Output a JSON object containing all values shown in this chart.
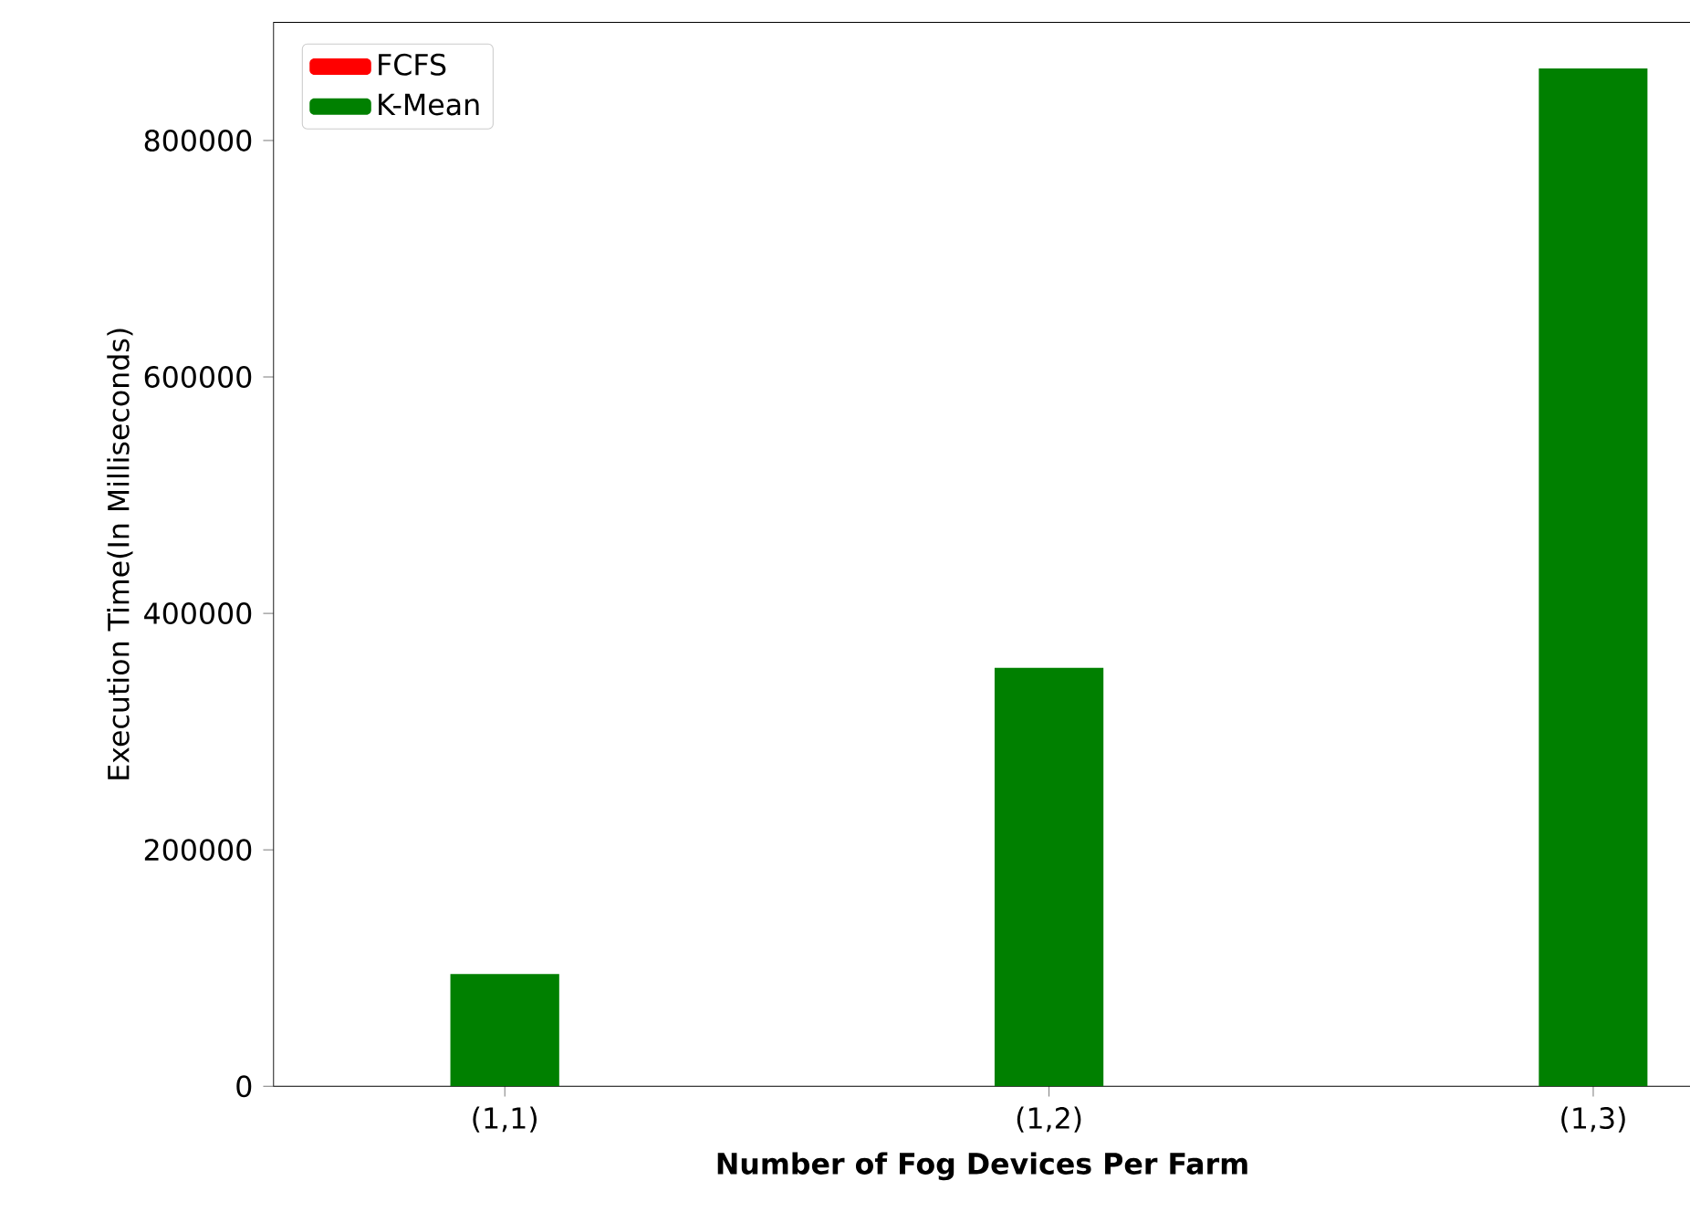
{
  "chart_data": {
    "type": "bar",
    "xlabel": "Number of Fog Devices Per Farm",
    "ylabel": "Execution Time(In Milliseconds)",
    "categories": [
      "(1,1)",
      "(1,2)",
      "(1,3)"
    ],
    "series": [
      {
        "name": "FCFS",
        "color": "#ff0000",
        "values": [
          null,
          null,
          null
        ]
      },
      {
        "name": "K-Mean",
        "color": "#008000",
        "values": [
          95000,
          354000,
          861000
        ]
      }
    ],
    "ylim": [
      0,
      900000
    ],
    "yticks": [
      0,
      200000,
      400000,
      600000,
      800000
    ],
    "grid": false,
    "legend": "top left"
  }
}
